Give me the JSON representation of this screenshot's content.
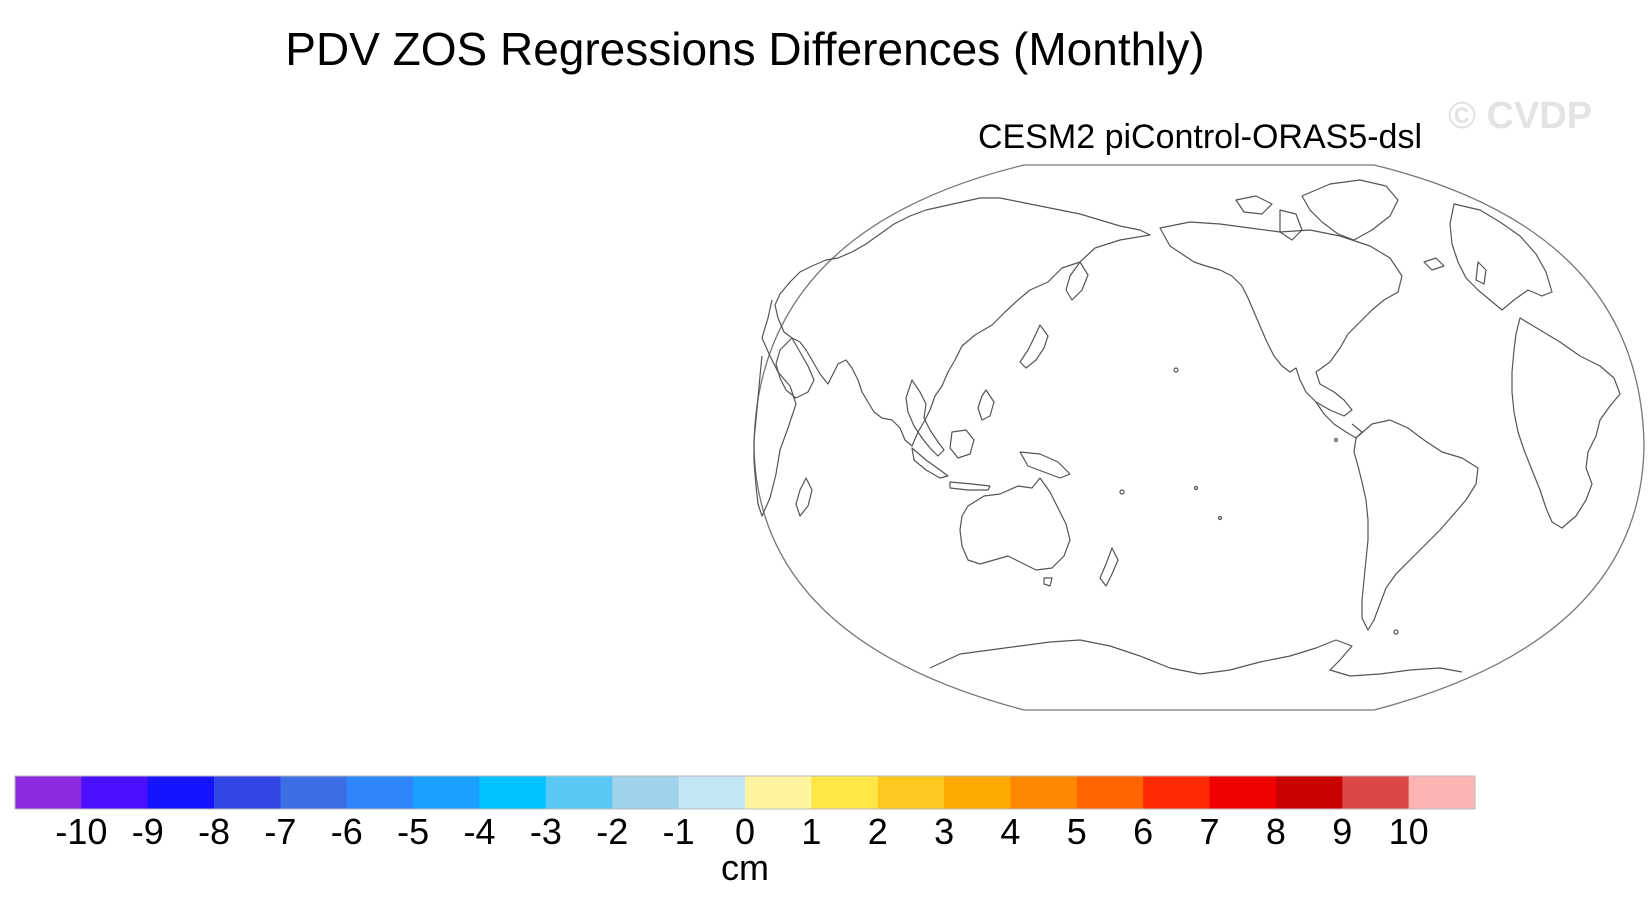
{
  "header": {
    "title": "PDV ZOS Regressions Differences (Monthly)",
    "watermark": "© CVDP"
  },
  "panel": {
    "title": "CESM2 piControl-ORAS5-dsl"
  },
  "colorbar": {
    "units": "cm",
    "tick_labels": [
      "-10",
      "-9",
      "-8",
      "-7",
      "-6",
      "-5",
      "-4",
      "-3",
      "-2",
      "-1",
      "0",
      "1",
      "2",
      "3",
      "4",
      "5",
      "6",
      "7",
      "8",
      "9",
      "10"
    ],
    "colors": [
      "#8a2be2",
      "#4b0fff",
      "#1414ff",
      "#3246e6",
      "#3c6ee6",
      "#2d87fa",
      "#19a0ff",
      "#00c3ff",
      "#5ac8f5",
      "#a0d2ec",
      "#c3e6f5",
      "#fff5a0",
      "#ffe646",
      "#ffc81e",
      "#ffaa00",
      "#ff8700",
      "#ff6400",
      "#ff2800",
      "#f00000",
      "#c80000",
      "#dc4646",
      "#ffb4b4"
    ]
  },
  "map_style": {
    "coast_color": "#555555",
    "frame_color": "#777777",
    "ocean_fill": "#ffffff"
  }
}
